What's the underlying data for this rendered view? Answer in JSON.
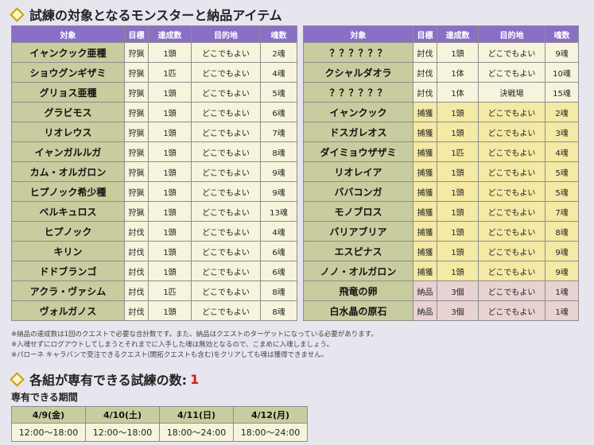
{
  "section1_title": "試練の対象となるモンスターと納品アイテム",
  "headers": {
    "target": "対象",
    "goal": "目標",
    "count": "達成数",
    "destination": "目的地",
    "souls": "魂数"
  },
  "left_rows": [
    {
      "name": "イャンクック亜種",
      "goal": "狩猟",
      "count": "1頭",
      "dest": "どこでもよい",
      "souls": "2魂"
    },
    {
      "name": "ショウグンギザミ",
      "goal": "狩猟",
      "count": "1匹",
      "dest": "どこでもよい",
      "souls": "4魂"
    },
    {
      "name": "グリョス亜種",
      "goal": "狩猟",
      "count": "1頭",
      "dest": "どこでもよい",
      "souls": "5魂"
    },
    {
      "name": "グラビモス",
      "goal": "狩猟",
      "count": "1頭",
      "dest": "どこでもよい",
      "souls": "6魂"
    },
    {
      "name": "リオレウス",
      "goal": "狩猟",
      "count": "1頭",
      "dest": "どこでもよい",
      "souls": "7魂"
    },
    {
      "name": "イャンガルルガ",
      "goal": "狩猟",
      "count": "1頭",
      "dest": "どこでもよい",
      "souls": "8魂"
    },
    {
      "name": "カム・オルガロン",
      "goal": "狩猟",
      "count": "1頭",
      "dest": "どこでもよい",
      "souls": "9魂"
    },
    {
      "name": "ヒプノック希少種",
      "goal": "狩猟",
      "count": "1頭",
      "dest": "どこでもよい",
      "souls": "9魂"
    },
    {
      "name": "ベルキュロス",
      "goal": "狩猟",
      "count": "1頭",
      "dest": "どこでもよい",
      "souls": "13魂"
    },
    {
      "name": "ヒプノック",
      "goal": "討伐",
      "count": "1頭",
      "dest": "どこでもよい",
      "souls": "4魂"
    },
    {
      "name": "キリン",
      "goal": "討伐",
      "count": "1頭",
      "dest": "どこでもよい",
      "souls": "6魂"
    },
    {
      "name": "ドドブランゴ",
      "goal": "討伐",
      "count": "1頭",
      "dest": "どこでもよい",
      "souls": "6魂"
    },
    {
      "name": "アクラ・ヴァシム",
      "goal": "討伐",
      "count": "1匹",
      "dest": "どこでもよい",
      "souls": "8魂"
    },
    {
      "name": "ヴォルガノス",
      "goal": "討伐",
      "count": "1頭",
      "dest": "どこでもよい",
      "souls": "8魂"
    }
  ],
  "right_rows": [
    {
      "name": "？？？？？？",
      "goal": "討伐",
      "count": "1頭",
      "dest": "どこでもよい",
      "souls": "9魂",
      "kind": "hunt"
    },
    {
      "name": "クシャルダオラ",
      "goal": "討伐",
      "count": "1体",
      "dest": "どこでもよい",
      "souls": "10魂",
      "kind": "hunt"
    },
    {
      "name": "？？？？？？",
      "goal": "討伐",
      "count": "1体",
      "dest": "決戦場",
      "souls": "15魂",
      "kind": "hunt"
    },
    {
      "name": "イャンクック",
      "goal": "捕獲",
      "count": "1頭",
      "dest": "どこでもよい",
      "souls": "2魂",
      "kind": "cap"
    },
    {
      "name": "ドスガレオス",
      "goal": "捕獲",
      "count": "1頭",
      "dest": "どこでもよい",
      "souls": "3魂",
      "kind": "cap"
    },
    {
      "name": "ダイミョウザザミ",
      "goal": "捕獲",
      "count": "1匹",
      "dest": "どこでもよい",
      "souls": "4魂",
      "kind": "cap"
    },
    {
      "name": "リオレイア",
      "goal": "捕獲",
      "count": "1頭",
      "dest": "どこでもよい",
      "souls": "5魂",
      "kind": "cap"
    },
    {
      "name": "ババコンガ",
      "goal": "捕獲",
      "count": "1頭",
      "dest": "どこでもよい",
      "souls": "5魂",
      "kind": "cap"
    },
    {
      "name": "モノブロス",
      "goal": "捕獲",
      "count": "1頭",
      "dest": "どこでもよい",
      "souls": "7魂",
      "kind": "cap"
    },
    {
      "name": "バリアブリア",
      "goal": "捕獲",
      "count": "1頭",
      "dest": "どこでもよい",
      "souls": "8魂",
      "kind": "cap"
    },
    {
      "name": "エスピナス",
      "goal": "捕獲",
      "count": "1頭",
      "dest": "どこでもよい",
      "souls": "9魂",
      "kind": "cap"
    },
    {
      "name": "ノノ・オルガロン",
      "goal": "捕獲",
      "count": "1頭",
      "dest": "どこでもよい",
      "souls": "9魂",
      "kind": "cap"
    },
    {
      "name": "飛竜の卵",
      "goal": "納品",
      "count": "3個",
      "dest": "どこでもよい",
      "souls": "1魂",
      "kind": "del"
    },
    {
      "name": "白水晶の原石",
      "goal": "納品",
      "count": "3個",
      "dest": "どこでもよい",
      "souls": "1魂",
      "kind": "del"
    }
  ],
  "notes": [
    "※納品の達成数は1回のクエストで必要な合計数です。また、納品はクエストのターゲットになっている必要があります。",
    "※入魂せずにログアウトしてしまうとそれまでに入手した魂は無効となるので、こまめに入魂しましょう。",
    "※パローネ キャラバンで受注できるクエスト(開拓クエストも含む)をクリアしても魂は獲得できません。"
  ],
  "section2_title": "各組が専有できる試練の数:",
  "section2_count": "1",
  "period_label": "専有できる期間",
  "period_days": [
    "4/9(金)",
    "4/10(土)",
    "4/11(日)",
    "4/12(月)"
  ],
  "period_times": [
    "12:00〜18:00",
    "12:00〜18:00",
    "18:00〜24:00",
    "18:00〜24:00"
  ]
}
